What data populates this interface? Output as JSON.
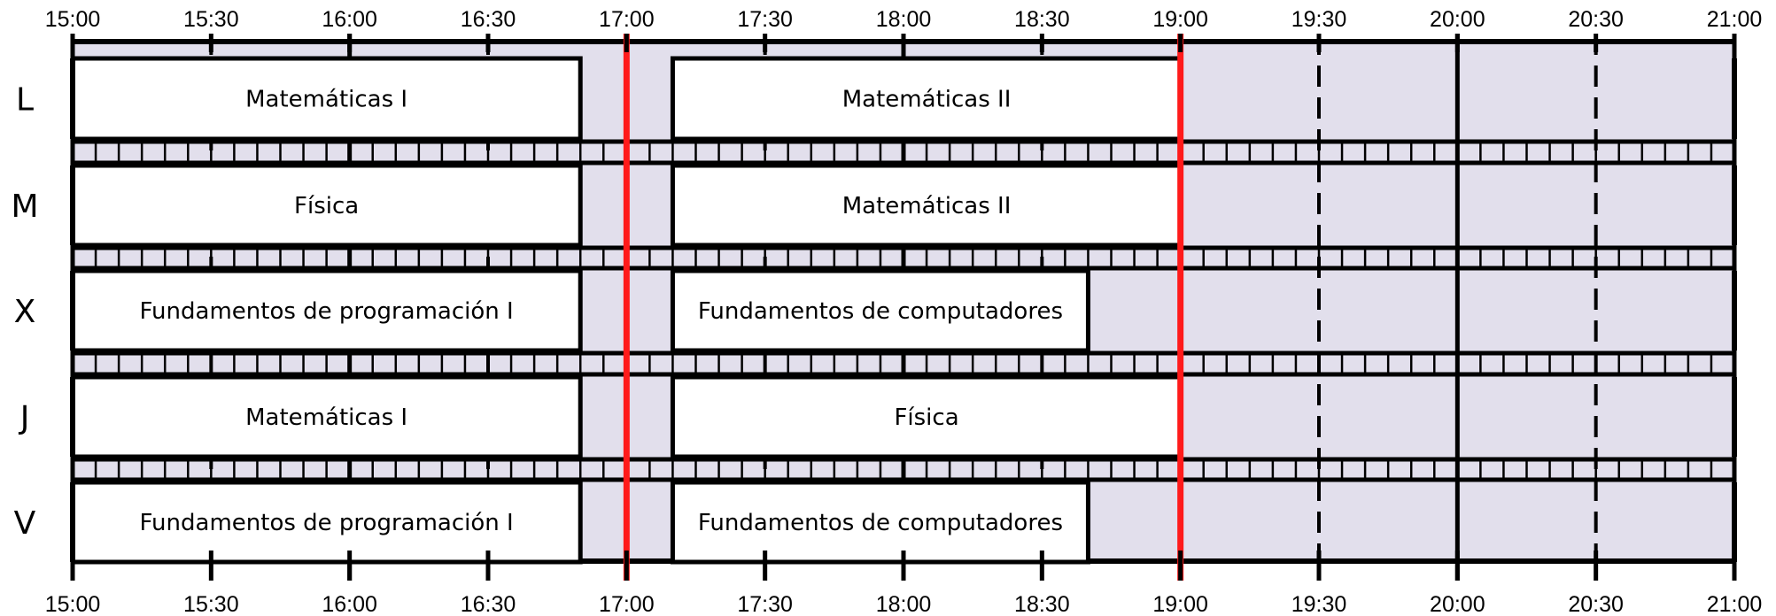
{
  "time_axis": {
    "start": "15:00",
    "end": "21:00",
    "major_ticks": [
      "15:00",
      "16:00",
      "17:00",
      "18:00",
      "19:00",
      "20:00",
      "21:00"
    ],
    "minor_ticks": [
      "15:30",
      "16:30",
      "17:30",
      "18:30",
      "19:30",
      "20:30"
    ],
    "labels": [
      "15:00",
      "15:30",
      "16:00",
      "16:30",
      "17:00",
      "17:30",
      "18:00",
      "18:30",
      "19:00",
      "19:30",
      "20:00",
      "20:30",
      "21:00"
    ]
  },
  "days": [
    {
      "label": "L",
      "blocks": [
        {
          "start": "15:00",
          "end": "16:50",
          "text": "Matemáticas I"
        },
        {
          "start": "17:10",
          "end": "19:00",
          "text": "Matemáticas II"
        }
      ]
    },
    {
      "label": "M",
      "blocks": [
        {
          "start": "15:00",
          "end": "16:50",
          "text": "Física"
        },
        {
          "start": "17:10",
          "end": "19:00",
          "text": "Matemáticas II"
        }
      ]
    },
    {
      "label": "X",
      "blocks": [
        {
          "start": "15:00",
          "end": "16:50",
          "text": "Fundamentos de programación I"
        },
        {
          "start": "17:10",
          "end": "18:40",
          "text": "Fundamentos de computadores"
        }
      ]
    },
    {
      "label": "J",
      "blocks": [
        {
          "start": "15:00",
          "end": "16:50",
          "text": "Matemáticas I"
        },
        {
          "start": "17:10",
          "end": "19:00",
          "text": "Física"
        }
      ]
    },
    {
      "label": "V",
      "blocks": [
        {
          "start": "15:00",
          "end": "16:50",
          "text": "Fundamentos de programación I"
        },
        {
          "start": "17:10",
          "end": "18:40",
          "text": "Fundamentos de computadores"
        }
      ]
    }
  ],
  "highlight_times": [
    "17:00",
    "19:00"
  ],
  "colors": {
    "free": "#e2dfec",
    "block": "#ffffff",
    "line": "#000000",
    "highlight": "#ff1a1a"
  }
}
